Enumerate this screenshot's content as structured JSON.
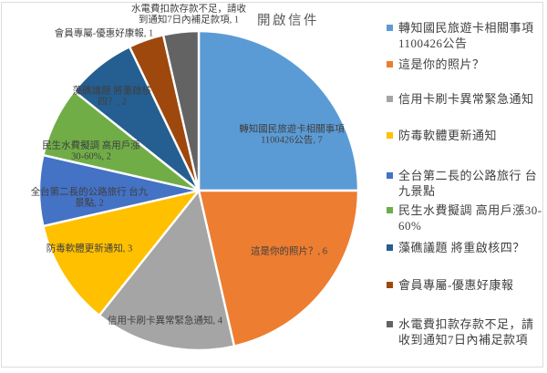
{
  "chart_data": {
    "type": "pie",
    "title": "開啟信件",
    "legend_position": "right",
    "total": 28,
    "background_color": "#ffffff",
    "border_color": "#dcdcdc",
    "title_color": "#595959",
    "label_color": "#3f3f3f",
    "slices": [
      {
        "name": "轉知國民旅遊卡相關事項 1100426公告",
        "value": 7,
        "color": "#5B9BD5",
        "label_lines": [
          "轉知國民旅遊卡相關事項",
          "1100426公告, 7"
        ]
      },
      {
        "name": "這是你的照片？",
        "value": 6,
        "color": "#ED7D31",
        "label_lines": [
          "這是你的照片？, 6"
        ]
      },
      {
        "name": "信用卡刷卡異常緊急通知",
        "value": 4,
        "color": "#A5A5A5",
        "label_lines": [
          "信用卡刷卡異常緊急通知, 4"
        ]
      },
      {
        "name": "防毒軟體更新通知",
        "value": 3,
        "color": "#FFC000",
        "label_lines": [
          "防毒軟體更新通知, 3"
        ]
      },
      {
        "name": "全台第二長的公路旅行 台九景點",
        "value": 2,
        "color": "#4472C4",
        "label_lines": [
          "全台第二長的公路旅行 台九",
          "景點, 2"
        ]
      },
      {
        "name": "民生水費擬調 高用戶漲30-60%",
        "value": 2,
        "color": "#70AD47",
        "label_lines": [
          "民生水費擬調 高用戶漲",
          "30-60%, 2"
        ]
      },
      {
        "name": "藻礁議題 將重啟核四？",
        "value": 2,
        "color": "#255E91",
        "label_lines": [
          "藻礁議題 將重啟核",
          "四？, 2"
        ]
      },
      {
        "name": "會員專屬-優惠好康報",
        "value": 1,
        "color": "#9E480E",
        "label_lines": [
          "會員專屬-優惠好康報, 1"
        ]
      },
      {
        "name": "水電費扣款存款不足，請收到通知7日內補足款項",
        "value": 1,
        "color": "#636363",
        "label_lines": [
          "水電費扣款存款不足，請收",
          "到通知7日內補足款項, 1"
        ]
      }
    ]
  }
}
